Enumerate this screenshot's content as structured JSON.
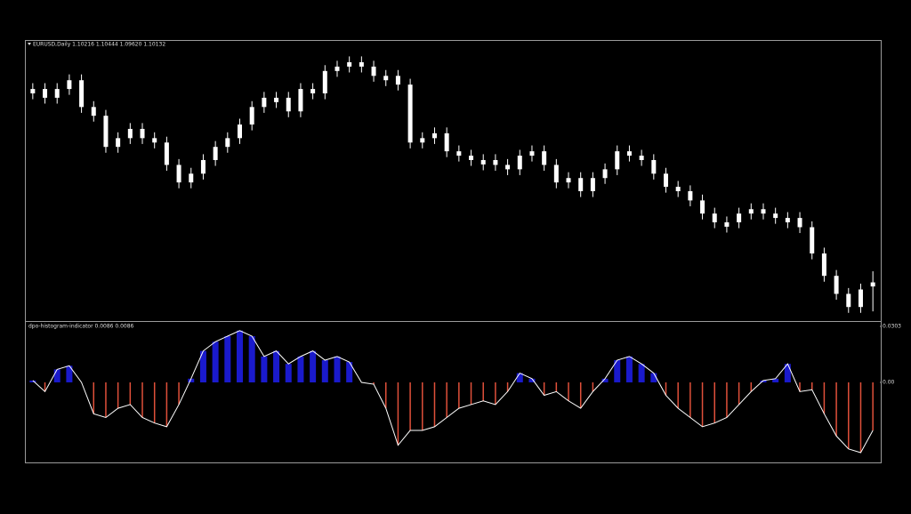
{
  "chart_data": [
    {
      "type": "candlestick",
      "title": "EURUSD,Daily  1.10216 1.10444 1.09620 1.10132",
      "color": "#ffffff",
      "ylim": [
        1.0944,
        1.1516
      ],
      "open": [
        1.141,
        1.1419,
        1.1401,
        1.1419,
        1.1437,
        1.1382,
        1.1364,
        1.13,
        1.1318,
        1.1337,
        1.1318,
        1.1309,
        1.1263,
        1.1227,
        1.1245,
        1.1273,
        1.13,
        1.1318,
        1.1346,
        1.1382,
        1.1392,
        1.1401,
        1.1373,
        1.1419,
        1.141,
        1.1456,
        1.1465,
        1.1474,
        1.1465,
        1.1437,
        1.1446,
        1.1428,
        1.1309,
        1.1318,
        1.1328,
        1.1291,
        1.1282,
        1.1264,
        1.1273,
        1.1263,
        1.1254,
        1.1282,
        1.1291,
        1.1263,
        1.1227,
        1.1236,
        1.1209,
        1.1236,
        1.1254,
        1.1291,
        1.1282,
        1.1273,
        1.1245,
        1.1218,
        1.1209,
        1.119,
        1.1163,
        1.1136,
        1.1145,
        1.1163,
        1.1172,
        1.1163,
        1.1145,
        1.1154,
        1.1135,
        1.1081,
        1.1035,
        1.0998,
        1.0971,
        1.10216
      ],
      "high": [
        1.1431,
        1.1431,
        1.1431,
        1.1449,
        1.1449,
        1.1394,
        1.1376,
        1.133,
        1.1349,
        1.1349,
        1.133,
        1.1321,
        1.1275,
        1.1257,
        1.1285,
        1.1312,
        1.133,
        1.1358,
        1.1394,
        1.1413,
        1.1413,
        1.1413,
        1.1431,
        1.1431,
        1.1468,
        1.1477,
        1.1486,
        1.1486,
        1.1477,
        1.1458,
        1.1458,
        1.144,
        1.133,
        1.134,
        1.134,
        1.1303,
        1.1294,
        1.1285,
        1.1285,
        1.1275,
        1.1294,
        1.1303,
        1.1303,
        1.1275,
        1.1248,
        1.1248,
        1.1248,
        1.1266,
        1.1303,
        1.1303,
        1.1294,
        1.1285,
        1.1257,
        1.123,
        1.1221,
        1.1202,
        1.1175,
        1.1157,
        1.1175,
        1.1184,
        1.1184,
        1.1175,
        1.1166,
        1.1166,
        1.1147,
        1.1093,
        1.1047,
        1.101,
        1.1019,
        1.10444
      ],
      "low": [
        1.1398,
        1.1389,
        1.1389,
        1.1407,
        1.137,
        1.1352,
        1.1288,
        1.1288,
        1.1306,
        1.1306,
        1.1297,
        1.1251,
        1.1215,
        1.1215,
        1.1233,
        1.1261,
        1.1288,
        1.1306,
        1.1334,
        1.137,
        1.138,
        1.1361,
        1.1361,
        1.1398,
        1.1398,
        1.1444,
        1.1453,
        1.1453,
        1.1434,
        1.1425,
        1.1416,
        1.1297,
        1.1297,
        1.1306,
        1.1279,
        1.127,
        1.1261,
        1.1252,
        1.1251,
        1.1242,
        1.1242,
        1.127,
        1.1251,
        1.1215,
        1.1215,
        1.1197,
        1.1197,
        1.1224,
        1.1242,
        1.127,
        1.1261,
        1.1233,
        1.1206,
        1.1197,
        1.1178,
        1.1151,
        1.1133,
        1.1124,
        1.1133,
        1.1151,
        1.1151,
        1.1142,
        1.1133,
        1.1123,
        1.1069,
        1.1023,
        1.0986,
        1.0959,
        1.0959,
        1.0962
      ],
      "close": [
        1.1419,
        1.1401,
        1.1419,
        1.1437,
        1.1382,
        1.1364,
        1.13,
        1.1318,
        1.1337,
        1.1318,
        1.1309,
        1.1263,
        1.1227,
        1.1245,
        1.1273,
        1.13,
        1.1318,
        1.1346,
        1.1382,
        1.1401,
        1.1401,
        1.1373,
        1.1419,
        1.141,
        1.1456,
        1.1465,
        1.1474,
        1.1465,
        1.1446,
        1.1446,
        1.1428,
        1.1309,
        1.1318,
        1.1328,
        1.1291,
        1.1282,
        1.1273,
        1.1273,
        1.1263,
        1.1254,
        1.1282,
        1.1291,
        1.1263,
        1.1227,
        1.1236,
        1.1209,
        1.1236,
        1.1254,
        1.1291,
        1.1282,
        1.1273,
        1.1245,
        1.1218,
        1.1209,
        1.119,
        1.1163,
        1.1145,
        1.1145,
        1.1163,
        1.1172,
        1.1163,
        1.1154,
        1.1154,
        1.1135,
        1.1081,
        1.1035,
        1.0998,
        1.0971,
        1.1007,
        1.10132
      ]
    },
    {
      "type": "histogram",
      "title": "dpo-histogram-indicator 0.0086 0.0086",
      "positive_color": "#1a1acc",
      "negative_color": "#e0503a",
      "line_color": "#ffffff",
      "ylim": [
        -0.0433,
        0.0327
      ],
      "yticks": [
        0.0303,
        {
          "value": 0,
          "label": "0.00"
        }
      ],
      "values": [
        0.001,
        -0.005,
        0.007,
        0.009,
        0,
        -0.017,
        -0.019,
        -0.014,
        -0.012,
        -0.019,
        -0.022,
        -0.024,
        -0.012,
        0.002,
        0.017,
        0.022,
        0.025,
        0.028,
        0.025,
        0.014,
        0.017,
        0.01,
        0.014,
        0.017,
        0.012,
        0.014,
        0.011,
        0,
        -0.001,
        -0.014,
        -0.034,
        -0.026,
        -0.026,
        -0.024,
        -0.019,
        -0.014,
        -0.012,
        -0.01,
        -0.012,
        -0.005,
        0.005,
        0.002,
        -0.007,
        -0.005,
        -0.01,
        -0.014,
        -0.005,
        0.002,
        0.012,
        0.014,
        0.01,
        0.005,
        -0.007,
        -0.014,
        -0.019,
        -0.024,
        -0.022,
        -0.019,
        -0.012,
        -0.005,
        0.001,
        0.002,
        0.01,
        -0.005,
        -0.004,
        -0.017,
        -0.029,
        -0.036,
        -0.038,
        -0.026
      ]
    }
  ]
}
